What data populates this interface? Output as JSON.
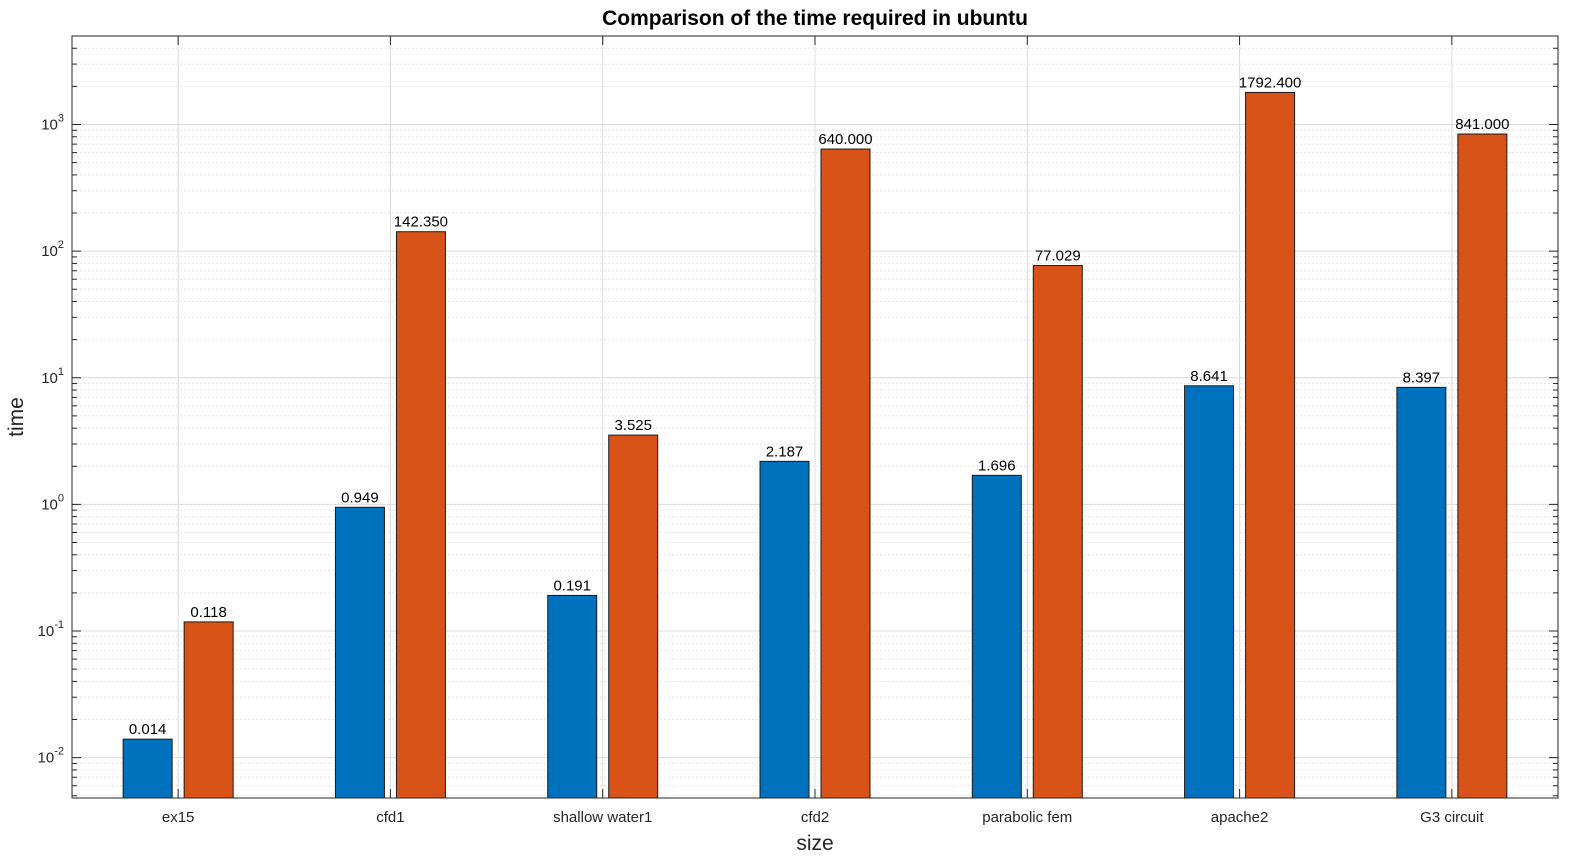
{
  "chart_data": {
    "type": "bar",
    "title": "Comparison of the time required in ubuntu",
    "xlabel": "size",
    "ylabel": "time",
    "yscale": "log",
    "ylim": [
      0.0048,
      5000
    ],
    "ytick_labels": [
      {
        "base": "10",
        "exp": "-2",
        "value": 0.01
      },
      {
        "base": "10",
        "exp": "-1",
        "value": 0.1
      },
      {
        "base": "10",
        "exp": "0",
        "value": 1
      },
      {
        "base": "10",
        "exp": "1",
        "value": 10
      },
      {
        "base": "10",
        "exp": "2",
        "value": 100
      },
      {
        "base": "10",
        "exp": "3",
        "value": 1000
      }
    ],
    "grid": true,
    "minor_grid": true,
    "categories": [
      "ex15",
      "cfd1",
      "shallow water1",
      "cfd2",
      "parabolic fem",
      "apache2",
      "G3 circuit"
    ],
    "series": [
      {
        "color": "#0072BD",
        "values": [
          0.014,
          0.949,
          0.191,
          2.187,
          1.696,
          8.641,
          8.397
        ],
        "labels": [
          "0.014",
          "0.949",
          "0.191",
          "2.187",
          "1.696",
          "8.641",
          "8.397"
        ]
      },
      {
        "color": "#D95319",
        "values": [
          0.118,
          142.35,
          3.525,
          640.0,
          77.029,
          1792.4,
          841.0
        ],
        "labels": [
          "0.118",
          "142.350",
          "3.525",
          "640.000",
          "77.029",
          "1792.400",
          "841.000"
        ]
      }
    ]
  }
}
